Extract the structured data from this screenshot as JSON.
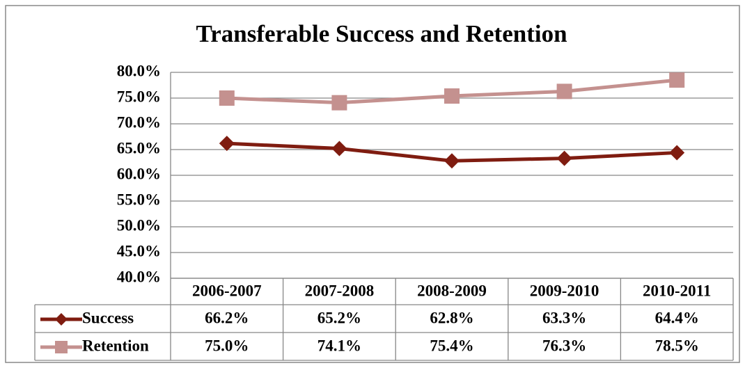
{
  "chart_data": {
    "type": "line",
    "title": "Transferable Success and Retention",
    "categories": [
      "2006-2007",
      "2007-2008",
      "2008-2009",
      "2009-2010",
      "2010-2011"
    ],
    "series": [
      {
        "name": "Success",
        "color": "#7f1c10",
        "marker": "diamond",
        "values": [
          66.2,
          65.2,
          62.8,
          63.3,
          64.4
        ],
        "value_labels": [
          "66.2%",
          "65.2%",
          "62.8%",
          "63.3%",
          "64.4%"
        ]
      },
      {
        "name": "Retention",
        "color": "#c4918f",
        "marker": "square",
        "values": [
          75.0,
          74.1,
          75.4,
          76.3,
          78.5
        ],
        "value_labels": [
          "75.0%",
          "74.1%",
          "75.4%",
          "76.3%",
          "78.5%"
        ]
      }
    ],
    "ylim": [
      40,
      80
    ],
    "yticks": [
      {
        "value": 40,
        "label": "40.0%"
      },
      {
        "value": 45,
        "label": "45.0%"
      },
      {
        "value": 50,
        "label": "50.0%"
      },
      {
        "value": 55,
        "label": "55.0%"
      },
      {
        "value": 60,
        "label": "60.0%"
      },
      {
        "value": 65,
        "label": "65.0%"
      },
      {
        "value": 70,
        "label": "70.0%"
      },
      {
        "value": 75,
        "label": "75.0%"
      },
      {
        "value": 80,
        "label": "80.0%"
      }
    ],
    "grid": true
  }
}
